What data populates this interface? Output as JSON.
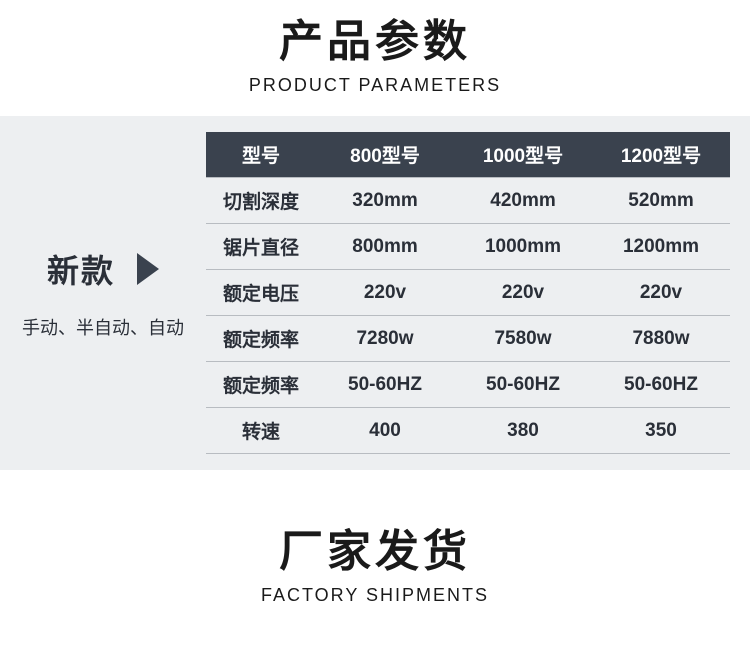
{
  "header1": {
    "cn": "产品参数",
    "en": "PRODUCT PARAMETERS"
  },
  "header2": {
    "cn": "厂家发货",
    "en": "FACTORY SHIPMENTS"
  },
  "sidebar": {
    "title": "新款",
    "subtitle": "手动、半自动、自动"
  },
  "table": {
    "columns": [
      "型号",
      "800型号",
      "1000型号",
      "1200型号"
    ],
    "rows": [
      [
        "切割深度",
        "320mm",
        "420mm",
        "520mm"
      ],
      [
        "锯片直径",
        "800mm",
        "1000mm",
        "1200mm"
      ],
      [
        "额定电压",
        "220v",
        "220v",
        "220v"
      ],
      [
        "额定频率",
        "7280w",
        "7580w",
        "7880w"
      ],
      [
        "额定频率",
        "50-60HZ",
        "50-60HZ",
        "50-60HZ"
      ],
      [
        "转速",
        "400",
        "380",
        "350"
      ]
    ],
    "header_bg": "#3a424e",
    "header_text": "#ffffff",
    "body_bg": "#edeff1",
    "body_text": "#2a2f38",
    "border_color": "#b8bcc1",
    "font_size": 19
  },
  "colors": {
    "page_bg": "#ffffff",
    "block_bg": "#edeff1",
    "arrow": "#3a424e",
    "heading": "#1a1a1a"
  }
}
